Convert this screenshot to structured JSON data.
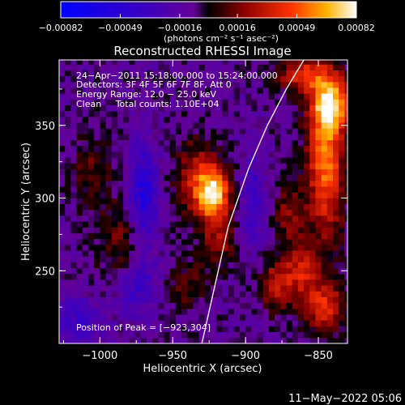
{
  "chart_data": {
    "type": "heatmap",
    "title": "Reconstructed RHESSI Image",
    "xlabel": "Heliocentric X (arcsec)",
    "ylabel": "Heliocentric Y (arcsec)",
    "xlim": [
      -1028,
      -830
    ],
    "ylim": [
      200,
      395
    ],
    "x_ticks": [
      -1000,
      -950,
      -900,
      -850
    ],
    "x_tick_labels": [
      "−1000",
      "−950",
      "−900",
      "−850"
    ],
    "y_ticks": [
      250,
      300,
      350
    ],
    "y_tick_labels": [
      "250",
      "300",
      "350"
    ],
    "colorbar": {
      "range": [
        -0.00082,
        0.00082
      ],
      "ticks": [
        -0.00082,
        -0.00049,
        -0.00016,
        0.00016,
        0.00049,
        0.00082
      ],
      "tick_labels": [
        "−0.00082",
        "−0.00049",
        "−0.00016",
        "0.00016",
        "0.00049",
        "0.00082"
      ],
      "unit_label": "(photons cm⁻² s⁻¹ asec⁻²)"
    },
    "info_lines": [
      "24−Apr−2011 15:18:00.000 to 15:24:00.000",
      "Detectors: 3F 4F 5F 6F 7F 8F, Att 0",
      "Energy Range: 12.0 − 25.0 keV",
      "Clean     Total counts: 1.10E+04"
    ],
    "peak_label": "Position of Peak = [−923,304]",
    "peak": [
      -923,
      304
    ],
    "limb_points": [
      [
        -930,
        200
      ],
      [
        -921,
        240
      ],
      [
        -912,
        280
      ],
      [
        -898,
        320
      ],
      [
        -885,
        350
      ],
      [
        -872,
        375
      ],
      [
        -860,
        395
      ]
    ],
    "sources": [
      {
        "x": -922,
        "y": 303,
        "amp": 1.0,
        "sx": 8,
        "sy": 13
      },
      {
        "x": -935,
        "y": 315,
        "amp": 0.45,
        "sx": 10,
        "sy": 18
      },
      {
        "x": -918,
        "y": 270,
        "amp": 0.35,
        "sx": 9,
        "sy": 12
      },
      {
        "x": -845,
        "y": 330,
        "amp": 0.8,
        "sx": 9,
        "sy": 40
      },
      {
        "x": -840,
        "y": 365,
        "amp": 0.7,
        "sx": 10,
        "sy": 12
      },
      {
        "x": -862,
        "y": 385,
        "amp": 0.55,
        "sx": 12,
        "sy": 8
      },
      {
        "x": -862,
        "y": 250,
        "amp": 0.5,
        "sx": 9,
        "sy": 14
      },
      {
        "x": -880,
        "y": 240,
        "amp": 0.45,
        "sx": 8,
        "sy": 12
      },
      {
        "x": -845,
        "y": 225,
        "amp": 0.55,
        "sx": 10,
        "sy": 12
      },
      {
        "x": -870,
        "y": 290,
        "amp": 0.35,
        "sx": 7,
        "sy": 14
      },
      {
        "x": -985,
        "y": 270,
        "amp": 0.3,
        "sx": 12,
        "sy": 20
      },
      {
        "x": -1005,
        "y": 320,
        "amp": 0.25,
        "sx": 10,
        "sy": 18
      },
      {
        "x": -940,
        "y": 240,
        "amp": 0.25,
        "sx": 10,
        "sy": 12
      },
      {
        "x": -970,
        "y": 300,
        "amp": -0.55,
        "sx": 7,
        "sy": 25
      },
      {
        "x": -975,
        "y": 240,
        "amp": -0.35,
        "sx": 10,
        "sy": 14
      },
      {
        "x": -1015,
        "y": 215,
        "amp": -0.3,
        "sx": 12,
        "sy": 12
      },
      {
        "x": -895,
        "y": 300,
        "amp": -0.3,
        "sx": 6,
        "sy": 25
      }
    ]
  },
  "footer": {
    "timestamp": "11−May−2022 05:06"
  }
}
